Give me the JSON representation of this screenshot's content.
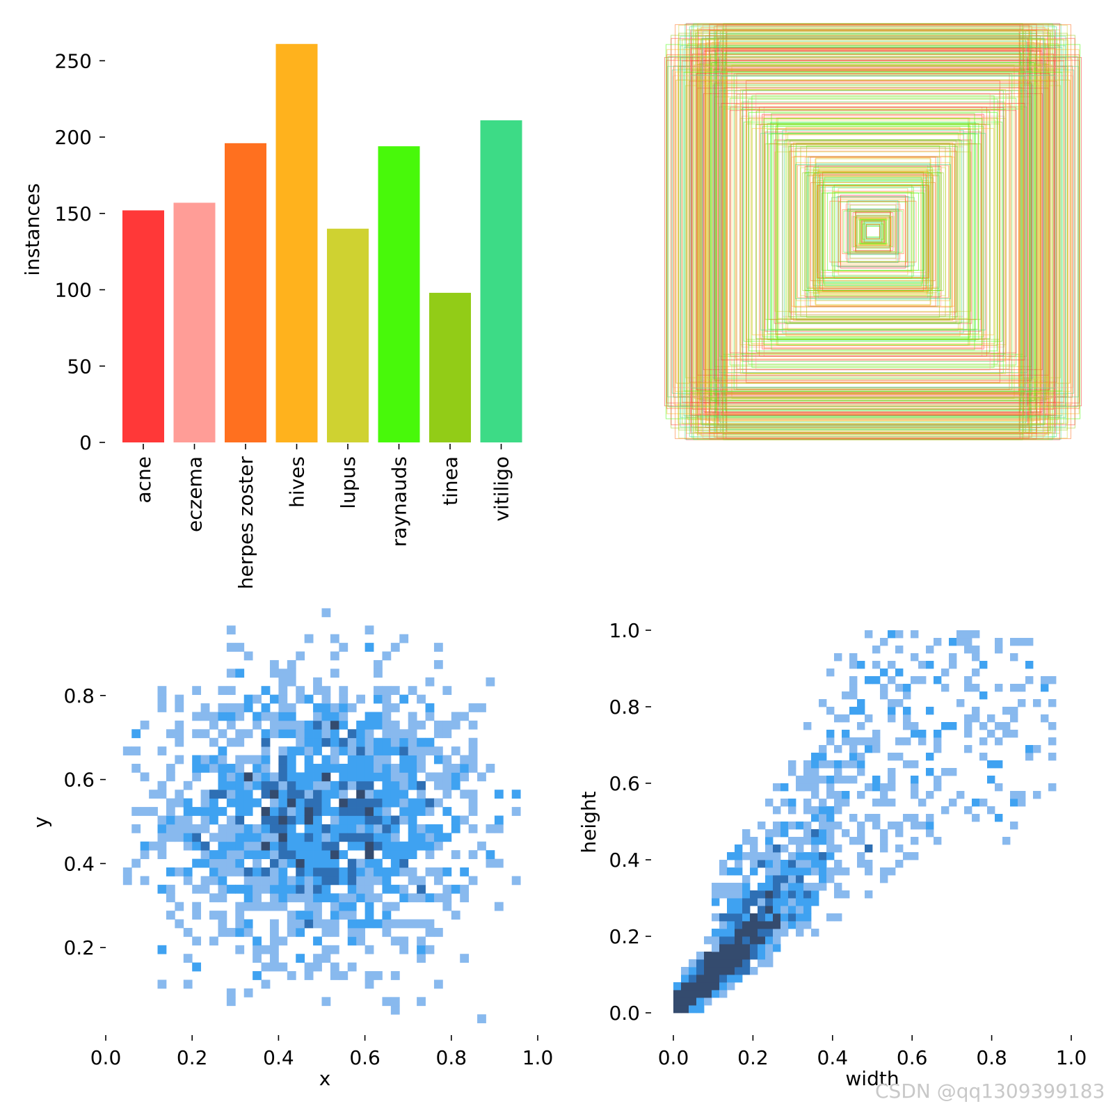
{
  "watermark": "CSDN @qq1309399183",
  "chart_data": [
    {
      "type": "bar",
      "categories": [
        "acne",
        "eczema",
        "herpes zoster",
        "hives",
        "lupus",
        "raynauds",
        "tinea",
        "vitiligo"
      ],
      "values": [
        152,
        157,
        196,
        261,
        140,
        194,
        98,
        211
      ],
      "colors": [
        "#ff3838",
        "#ff9d97",
        "#ff701f",
        "#ffb21d",
        "#cfd231",
        "#48f90a",
        "#92cc17",
        "#3ddb86"
      ],
      "xlabel": "",
      "ylabel": "instances",
      "ylim": [
        0,
        262
      ],
      "yticks": [
        0,
        50,
        100,
        150,
        200,
        250
      ]
    },
    {
      "type": "other",
      "description_free": true,
      "box_count": 360,
      "palette": [
        "#ff3838",
        "#ff9d97",
        "#ff701f",
        "#ffb21d",
        "#cfd231",
        "#48f90a",
        "#92cc17",
        "#3ddb86"
      ]
    },
    {
      "type": "heatmap",
      "xlabel": "x",
      "ylabel": "y",
      "xlim": [
        0.0,
        1.0
      ],
      "ylim": [
        0.0,
        0.96
      ],
      "xticks": [
        "0.0",
        "0.2",
        "0.4",
        "0.6",
        "0.8",
        "1.0"
      ],
      "yticks": [
        "0.2",
        "0.4",
        "0.6",
        "0.8"
      ],
      "center": [
        0.5,
        0.5
      ],
      "spread": [
        0.18,
        0.16
      ],
      "bins": 50,
      "colors": [
        "#88b9ee",
        "#3fa2f1",
        "#2e6fb4",
        "#344b6e"
      ]
    },
    {
      "type": "heatmap",
      "xlabel": "width",
      "ylabel": "height",
      "xlim": [
        0.0,
        1.0
      ],
      "ylim": [
        0.0,
        1.0
      ],
      "xticks": [
        "0.0",
        "0.2",
        "0.4",
        "0.6",
        "0.8",
        "1.0"
      ],
      "yticks": [
        "0.0",
        "0.2",
        "0.4",
        "0.6",
        "0.8",
        "1.0"
      ],
      "bins": 50,
      "colors": [
        "#88b9ee",
        "#3fa2f1",
        "#2e6fb4",
        "#344b6e"
      ]
    }
  ]
}
